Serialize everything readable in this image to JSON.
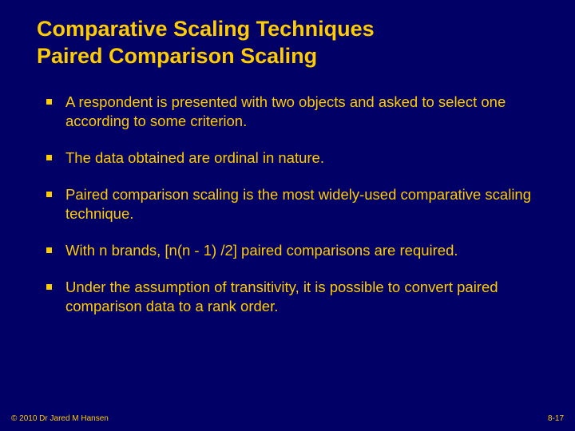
{
  "slide": {
    "background_color": "#000066",
    "text_color": "#ffcc00",
    "title_line1": "Comparative Scaling Techniques",
    "title_line2": "Paired Comparison Scaling",
    "title_fontsize": 27,
    "title_fontweight": "bold",
    "bullets": [
      "A respondent is presented with two objects and asked to select one according to some criterion.",
      "The data obtained are ordinal in nature.",
      "Paired comparison scaling is the most widely-used comparative scaling technique.",
      "With n brands, [n(n - 1) /2] paired comparisons are required.",
      "Under the assumption of transitivity, it is possible to convert paired comparison data to a rank order."
    ],
    "bullet_fontsize": 18.5,
    "bullet_marker_size": 7,
    "bullet_marker_color": "#ffcc00",
    "footer_left": "© 2010 Dr Jared M Hansen",
    "footer_right": "8-17",
    "footer_fontsize": 10
  }
}
